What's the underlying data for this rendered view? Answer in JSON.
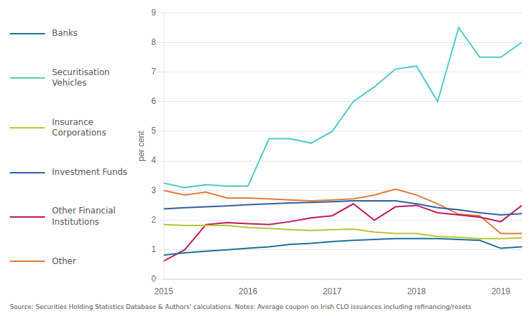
{
  "chart_data": {
    "type": "line",
    "ylabel": "per cent",
    "annotations": [
      "Source: Securities Holding Statistics Database & Authors' calculations. Notes: Average coupon on Irish CLO issuances including refinancing/resets"
    ],
    "x": [
      2015.0,
      2015.25,
      2015.5,
      2015.75,
      2016.0,
      2016.25,
      2016.5,
      2016.75,
      2017.0,
      2017.25,
      2017.5,
      2017.75,
      2018.0,
      2018.25,
      2018.5,
      2018.75,
      2019.0,
      2019.25
    ],
    "series": [
      {
        "name": "Banks",
        "color": "#1a7099",
        "values": [
          0.82,
          0.9,
          0.95,
          1.0,
          1.05,
          1.1,
          1.18,
          1.22,
          1.28,
          1.32,
          1.35,
          1.38,
          1.38,
          1.38,
          1.35,
          1.32,
          1.05,
          1.1
        ]
      },
      {
        "name": "Securitisation\nVehicles",
        "color": "#4ec9c9",
        "values": [
          3.25,
          3.1,
          3.2,
          3.15,
          3.15,
          4.75,
          4.75,
          4.6,
          5.0,
          6.0,
          6.5,
          7.1,
          7.2,
          6.0,
          8.5,
          7.5,
          7.5,
          8.0
        ]
      },
      {
        "name": "Insurance\nCorporations",
        "color": "#b5c732",
        "values": [
          1.85,
          1.82,
          1.82,
          1.82,
          1.75,
          1.72,
          1.68,
          1.65,
          1.68,
          1.7,
          1.6,
          1.55,
          1.55,
          1.45,
          1.42,
          1.38,
          1.38,
          1.4
        ]
      },
      {
        "name": "Investment Funds",
        "color": "#2e5fa3",
        "values": [
          2.38,
          2.42,
          2.45,
          2.48,
          2.52,
          2.55,
          2.58,
          2.6,
          2.62,
          2.65,
          2.65,
          2.65,
          2.55,
          2.42,
          2.35,
          2.25,
          2.18,
          2.22
        ]
      },
      {
        "name": "Other Financial\nInstitutions",
        "color": "#c0175d",
        "values": [
          0.62,
          1.0,
          1.85,
          1.92,
          1.88,
          1.85,
          1.95,
          2.08,
          2.15,
          2.55,
          2.0,
          2.45,
          2.5,
          2.25,
          2.18,
          2.1,
          1.95,
          2.5
        ]
      },
      {
        "name": "Other",
        "color": "#e07b39",
        "values": [
          3.0,
          2.85,
          2.95,
          2.75,
          2.75,
          2.72,
          2.68,
          2.65,
          2.68,
          2.72,
          2.85,
          3.05,
          2.85,
          2.55,
          2.2,
          2.15,
          1.55,
          1.55
        ]
      }
    ],
    "xlim": [
      2015.0,
      2019.25
    ],
    "xticks": [
      2015,
      2016,
      2017,
      2018,
      2019
    ],
    "ylim": [
      0,
      9
    ],
    "yticks": [
      0,
      1,
      2,
      3,
      4,
      5,
      6,
      7,
      8,
      9
    ],
    "grid": "y",
    "legend": "left"
  }
}
